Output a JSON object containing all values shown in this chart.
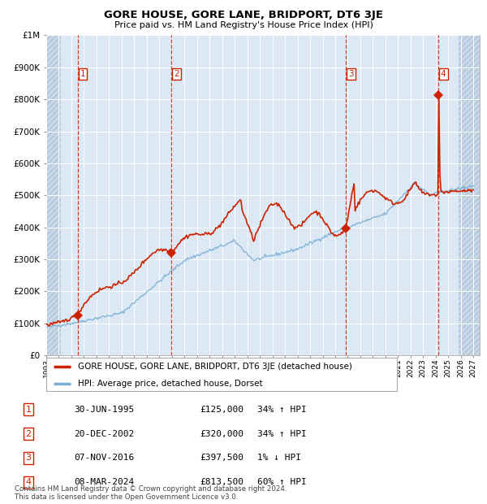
{
  "title": "GORE HOUSE, GORE LANE, BRIDPORT, DT6 3JE",
  "subtitle": "Price paid vs. HM Land Registry's House Price Index (HPI)",
  "legend_line1": "GORE HOUSE, GORE LANE, BRIDPORT, DT6 3JE (detached house)",
  "legend_line2": "HPI: Average price, detached house, Dorset",
  "footer1": "Contains HM Land Registry data © Crown copyright and database right 2024.",
  "footer2": "This data is licensed under the Open Government Licence v3.0.",
  "transactions": [
    {
      "num": 1,
      "date": "30-JUN-1995",
      "price": 125000,
      "pct": "34%",
      "dir": "↑",
      "x": 1995.5
    },
    {
      "num": 2,
      "date": "20-DEC-2002",
      "price": 320000,
      "pct": "34%",
      "dir": "↑",
      "x": 2002.97
    },
    {
      "num": 3,
      "date": "07-NOV-2016",
      "price": 397500,
      "pct": "1%",
      "dir": "↓",
      "x": 2016.85
    },
    {
      "num": 4,
      "date": "08-MAR-2024",
      "price": 813500,
      "pct": "60%",
      "dir": "↑",
      "x": 2024.19
    }
  ],
  "xlim": [
    1993.0,
    2027.5
  ],
  "ylim": [
    0,
    1000000
  ],
  "yticks": [
    0,
    100000,
    200000,
    300000,
    400000,
    500000,
    600000,
    700000,
    800000,
    900000,
    1000000
  ],
  "ytick_labels": [
    "£0",
    "£100K",
    "£200K",
    "£300K",
    "£400K",
    "£500K",
    "£600K",
    "£700K",
    "£800K",
    "£900K",
    "£1M"
  ],
  "hpi_color": "#7bafd4",
  "price_color": "#cc2200",
  "bg_color": "#dce9f5",
  "hatch_bg_color": "#c8d8e8",
  "grid_color": "#ffffff",
  "vline_color": "#cc2200",
  "marker_color": "#cc2200",
  "box_color": "#cc2200",
  "hatch_left_end": 1994.17,
  "hatch_right_start": 2025.83
}
